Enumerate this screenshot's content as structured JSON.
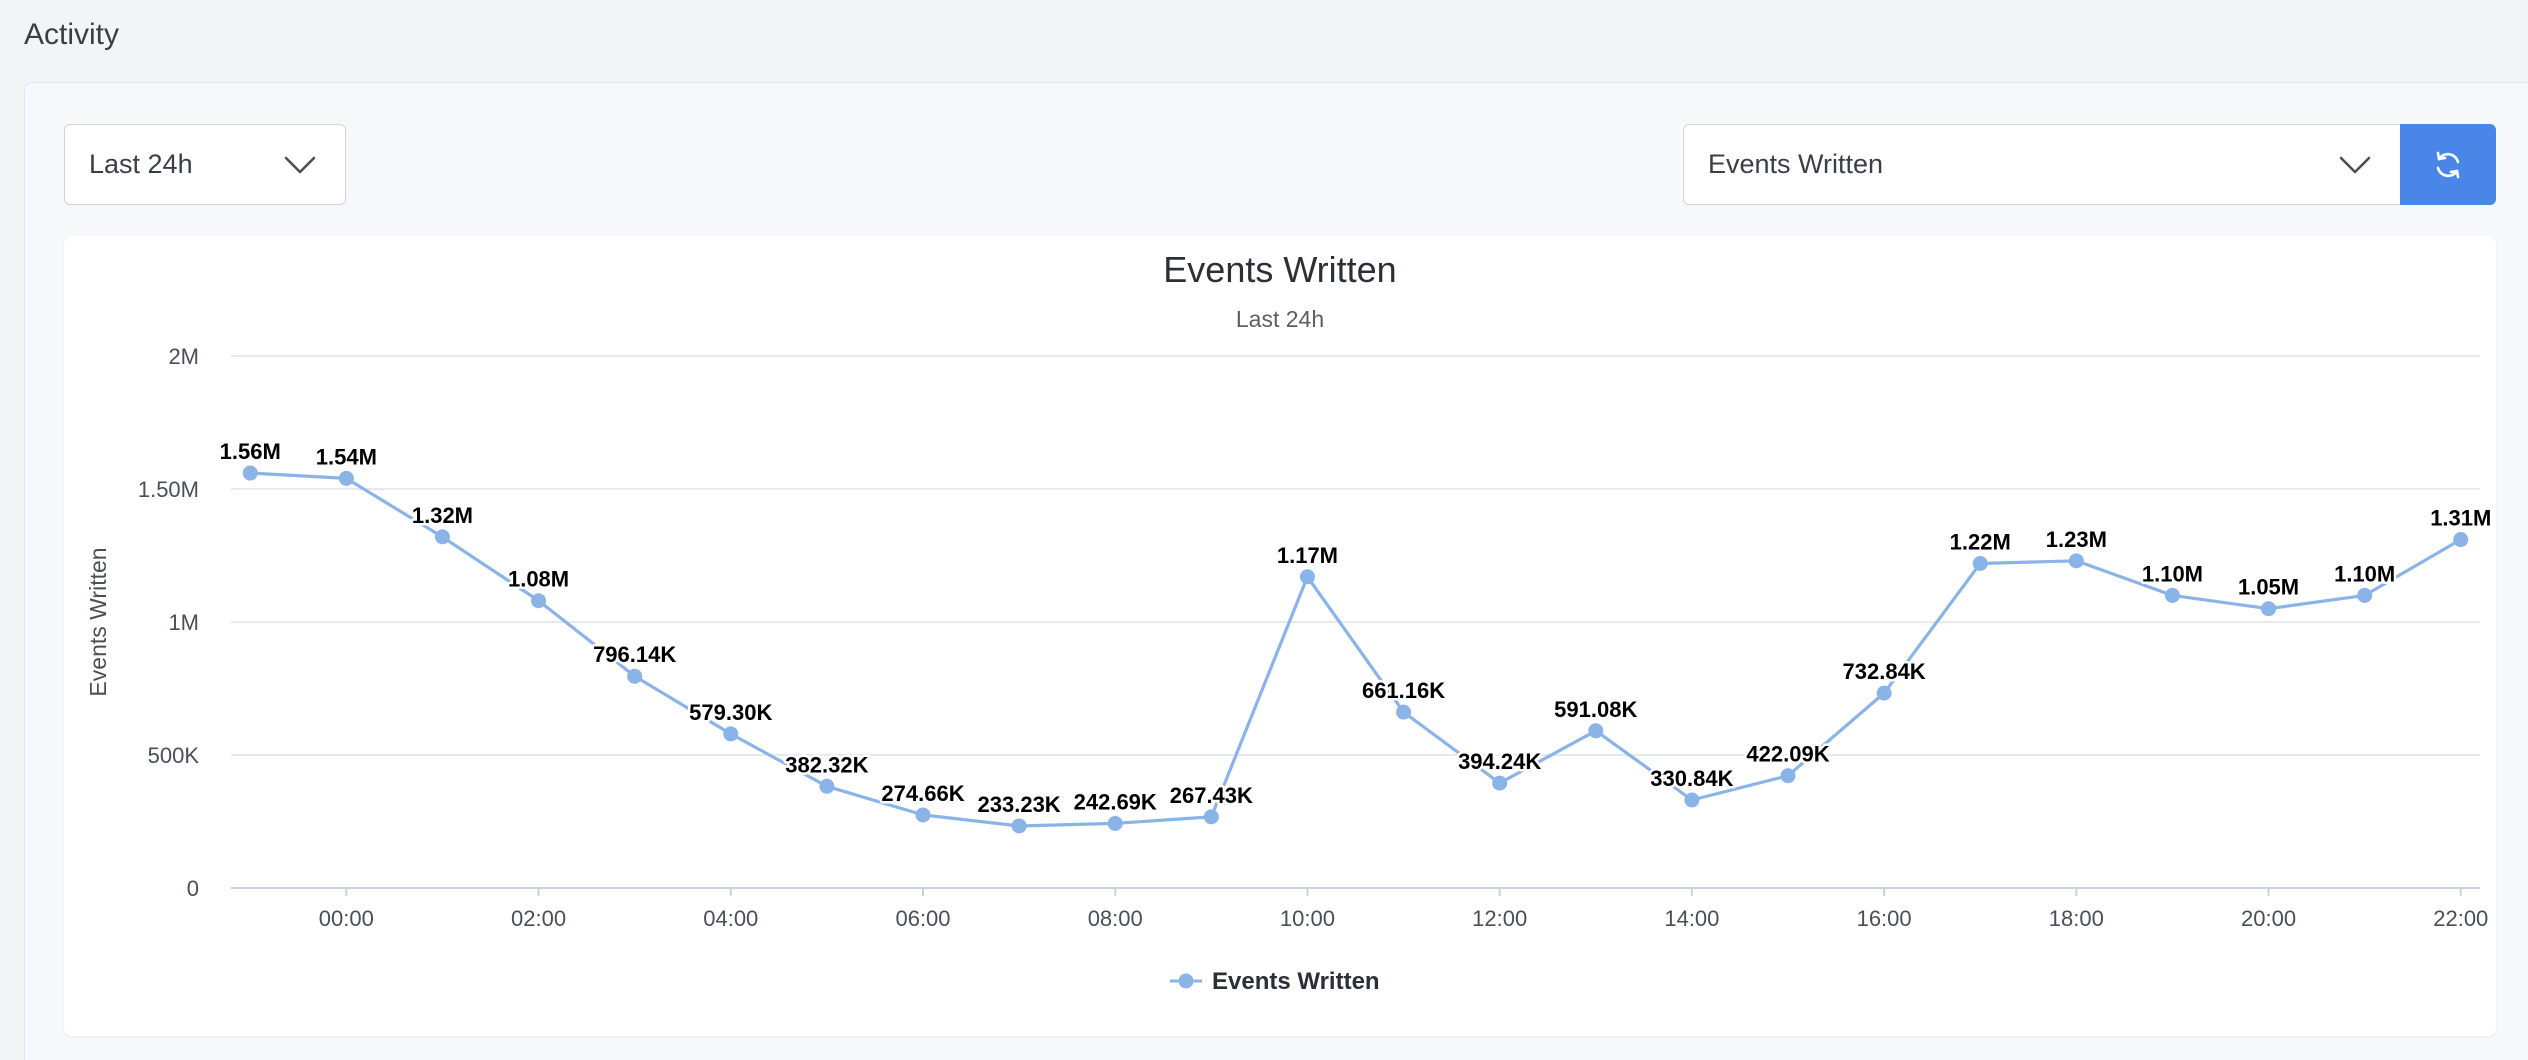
{
  "page": {
    "title": "Activity"
  },
  "controls": {
    "range_select": {
      "value": "Last 24h",
      "icon": "chevron-down-icon"
    },
    "metric_select": {
      "value": "Events Written",
      "icon": "chevron-down-icon"
    },
    "refresh_button": {
      "icon": "refresh-icon",
      "color": "#4a86e8"
    }
  },
  "chart_data": {
    "type": "line",
    "title": "Events Written",
    "subtitle": "Last 24h",
    "ylabel": "Events Written",
    "xlabel": "",
    "ylim": [
      0,
      2000000
    ],
    "y_ticks": [
      {
        "value": 0,
        "label": "0"
      },
      {
        "value": 500000,
        "label": "500K"
      },
      {
        "value": 1000000,
        "label": "1M"
      },
      {
        "value": 1500000,
        "label": "1.50M"
      },
      {
        "value": 2000000,
        "label": "2M"
      }
    ],
    "x_hours": [
      -1,
      0,
      1,
      2,
      3,
      4,
      5,
      6,
      7,
      8,
      9,
      10,
      11,
      12,
      13,
      14,
      15,
      16,
      17,
      18,
      19,
      20,
      21,
      22
    ],
    "x_ticks": [
      {
        "hour": 0,
        "label": "00:00"
      },
      {
        "hour": 2,
        "label": "02:00"
      },
      {
        "hour": 4,
        "label": "04:00"
      },
      {
        "hour": 6,
        "label": "06:00"
      },
      {
        "hour": 8,
        "label": "08:00"
      },
      {
        "hour": 10,
        "label": "10:00"
      },
      {
        "hour": 12,
        "label": "12:00"
      },
      {
        "hour": 14,
        "label": "14:00"
      },
      {
        "hour": 16,
        "label": "16:00"
      },
      {
        "hour": 18,
        "label": "18:00"
      },
      {
        "hour": 20,
        "label": "20:00"
      },
      {
        "hour": 22,
        "label": "22:00"
      }
    ],
    "series": [
      {
        "name": "Events Written",
        "color": "#8ab4e8",
        "values": [
          1560000,
          1540000,
          1320000,
          1080000,
          796140,
          579300,
          382320,
          274660,
          233230,
          242690,
          267430,
          1170000,
          661160,
          394240,
          591080,
          330840,
          422090,
          732840,
          1220000,
          1230000,
          1100000,
          1050000,
          1100000,
          1310000
        ],
        "labels": [
          "1.56M",
          "1.54M",
          "1.32M",
          "1.08M",
          "796.14K",
          "579.30K",
          "382.32K",
          "274.66K",
          "233.23K",
          "242.69K",
          "267.43K",
          "1.17M",
          "661.16K",
          "394.24K",
          "591.08K",
          "330.84K",
          "422.09K",
          "732.84K",
          "1.22M",
          "1.23M",
          "1.10M",
          "1.05M",
          "1.10M",
          "1.31M"
        ]
      }
    ],
    "grid": true,
    "legend": "bottom-center"
  }
}
